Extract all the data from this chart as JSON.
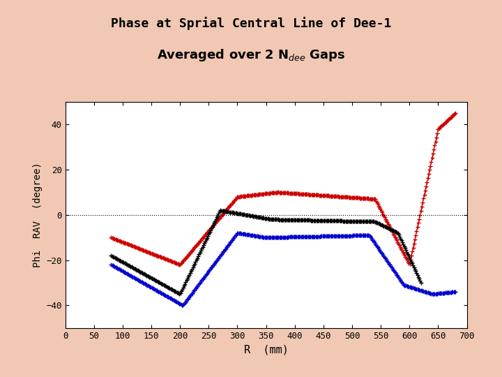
{
  "title_line1": "Phase at Sprial Central Line of Dee-1",
  "title_line2": "Averaged over 2 N$_{dee}$ Gaps",
  "xlabel": "R  (mm)",
  "ylabel": "Phi  RAV  (degree)",
  "xlim": [
    0,
    700
  ],
  "ylim": [
    -50,
    50
  ],
  "xticks": [
    0,
    50,
    100,
    150,
    200,
    250,
    300,
    350,
    400,
    450,
    500,
    550,
    600,
    650,
    700
  ],
  "yticks": [
    -40,
    -20,
    0,
    20,
    40
  ],
  "bg_color": "#ffffff",
  "outer_bg": "#f0c8b4",
  "marker": "+",
  "markersize": 4,
  "linewidth": 0.8,
  "red_color": "#cc0000",
  "black_color": "#000000",
  "blue_color": "#0000cc"
}
